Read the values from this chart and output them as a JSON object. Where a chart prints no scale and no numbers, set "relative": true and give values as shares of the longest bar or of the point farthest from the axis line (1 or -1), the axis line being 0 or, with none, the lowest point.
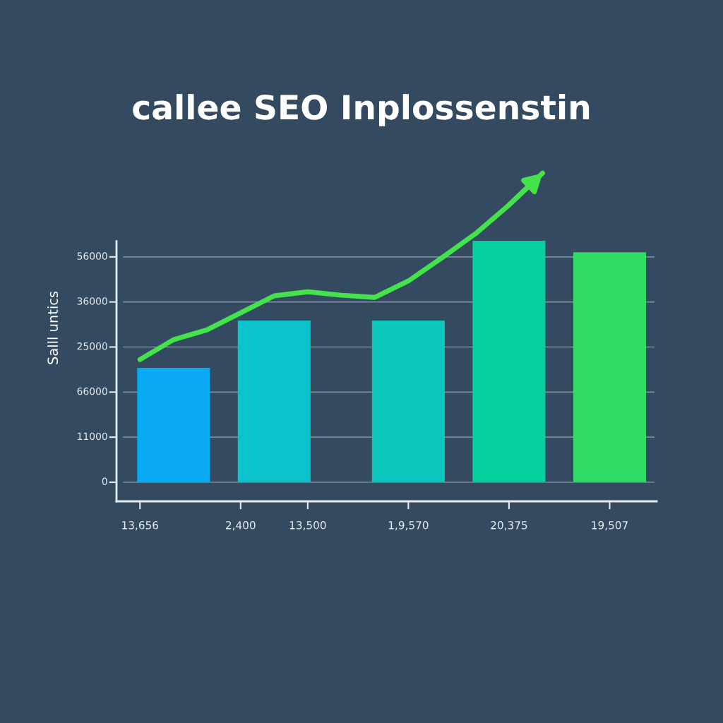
{
  "chart_data": {
    "type": "bar",
    "title": "callee SEO Inplossenstin",
    "ylabel": "Salll untics",
    "relative": true,
    "categories": [
      "13,656",
      null,
      null,
      "2,400",
      null,
      "13,500",
      null,
      null,
      "1,9,570",
      null,
      null,
      "20,375",
      null,
      null,
      "19,507"
    ],
    "series": [
      {
        "values": [
          null,
          0.37,
          null,
          null,
          0.523,
          null,
          null,
          null,
          0.523,
          null,
          null,
          0.781,
          null,
          null,
          0.744
        ],
        "colors": [
          null,
          "#0aaaf2",
          null,
          null,
          "#0cc3cc",
          null,
          null,
          null,
          "#0bc7bb",
          null,
          null,
          "#05cf9c",
          null,
          null,
          "#2fdc66"
        ]
      },
      {
        "type": "line",
        "values": [
          0.397,
          0.461,
          0.493,
          0.548,
          0.603,
          0.616,
          0.605,
          0.598,
          0.651,
          0.726,
          0.804,
          0.897,
          1,
          null,
          null
        ],
        "color": "#45e34b"
      }
    ],
    "annotations": [
      "0",
      "11000",
      "66000",
      "25000",
      "36000",
      "56000"
    ],
    "grid": "y",
    "legend": false
  }
}
